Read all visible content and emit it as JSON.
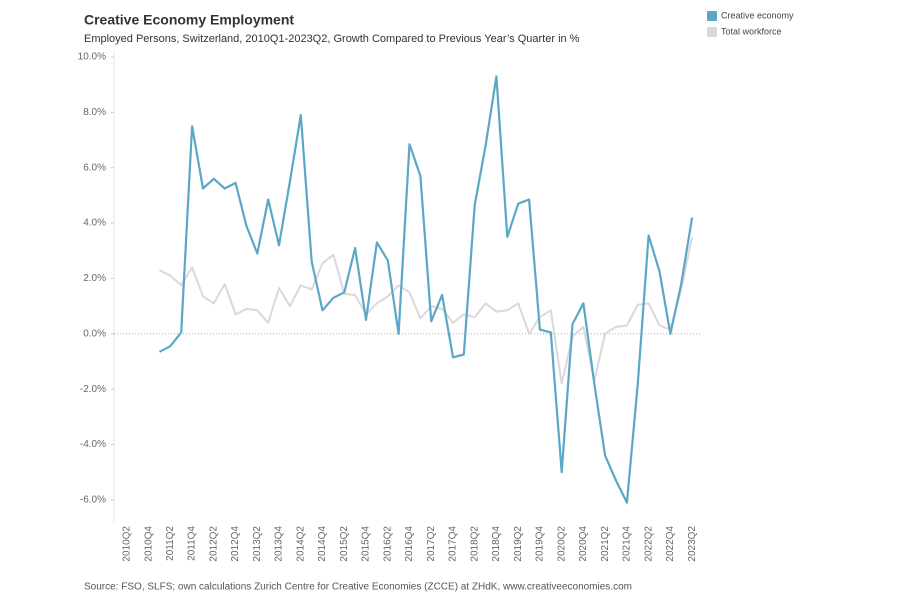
{
  "chart_data": {
    "type": "line",
    "title": "Creative Economy Employment",
    "subtitle": "Employed Persons, Switzerland, 2010Q1-2023Q2, Growth Compared to Previous Year’s Quarter in %",
    "source": "Source: FSO, SLFS; own calculations Zurich Centre for Creative Economies (ZCCE) at ZHdK, www.creativeeconomies.com",
    "categories": [
      null,
      "2010Q2",
      null,
      "2010Q4",
      null,
      "2011Q2",
      null,
      "2011Q4",
      null,
      "2012Q2",
      null,
      "2012Q4",
      null,
      "2013Q2",
      null,
      "2013Q4",
      null,
      "2014Q2",
      null,
      "2014Q4",
      null,
      "2015Q2",
      null,
      "2015Q4",
      null,
      "2016Q2",
      null,
      "2016Q4",
      null,
      "2017Q2",
      null,
      "2017Q4",
      null,
      "2018Q2",
      null,
      "2018Q4",
      null,
      "2019Q2",
      null,
      "2019Q4",
      null,
      "2020Q2",
      null,
      "2020Q4",
      null,
      "2021Q2",
      null,
      "2021Q4",
      null,
      "2022Q2",
      null,
      "2022Q4",
      null,
      "2023Q2"
    ],
    "series": [
      {
        "name": "Creative economy",
        "color": "#5aa8c6",
        "values": [
          null,
          null,
          null,
          null,
          -0.65,
          -0.45,
          0.05,
          7.5,
          5.25,
          5.6,
          5.25,
          5.45,
          3.9,
          2.9,
          4.85,
          3.2,
          5.5,
          7.9,
          2.6,
          0.85,
          1.3,
          1.5,
          3.1,
          0.5,
          3.3,
          2.65,
          0.0,
          6.85,
          5.7,
          0.45,
          1.4,
          -0.85,
          -0.75,
          4.65,
          6.8,
          9.3,
          3.5,
          4.7,
          4.85,
          0.15,
          0.05,
          -5.0,
          0.35,
          1.1,
          -1.8,
          -4.4,
          -5.3,
          -6.1,
          -1.8,
          3.55,
          2.25,
          0.0,
          1.8,
          4.2
        ]
      },
      {
        "name": "Total workforce",
        "color": "#d9d9d9",
        "values": [
          null,
          null,
          null,
          null,
          2.3,
          2.1,
          1.75,
          2.4,
          1.35,
          1.1,
          1.8,
          0.7,
          0.9,
          0.85,
          0.4,
          1.65,
          1.0,
          1.75,
          1.6,
          2.55,
          2.85,
          1.45,
          1.4,
          0.7,
          1.1,
          1.35,
          1.75,
          1.5,
          0.55,
          1.0,
          0.9,
          0.4,
          0.7,
          0.6,
          1.1,
          0.8,
          0.85,
          1.1,
          0.0,
          0.6,
          0.85,
          -1.8,
          -0.1,
          0.25,
          -1.7,
          0.0,
          0.25,
          0.3,
          1.05,
          1.1,
          0.3,
          0.15,
          1.6,
          3.5
        ]
      }
    ],
    "ylim": [
      -6.8,
      10.0
    ],
    "yticks": [
      {
        "value": -6,
        "label": "-6.0%"
      },
      {
        "value": -4,
        "label": "-4.0%"
      },
      {
        "value": -2,
        "label": "-2.0%"
      },
      {
        "value": 0,
        "label": "0.0%"
      },
      {
        "value": 2,
        "label": "2.0%"
      },
      {
        "value": 4,
        "label": "4.0%"
      },
      {
        "value": 6,
        "label": "6.0%"
      },
      {
        "value": 8,
        "label": "8.0%"
      },
      {
        "value": 10,
        "label": "10.0%"
      }
    ],
    "legend": "top-right"
  }
}
